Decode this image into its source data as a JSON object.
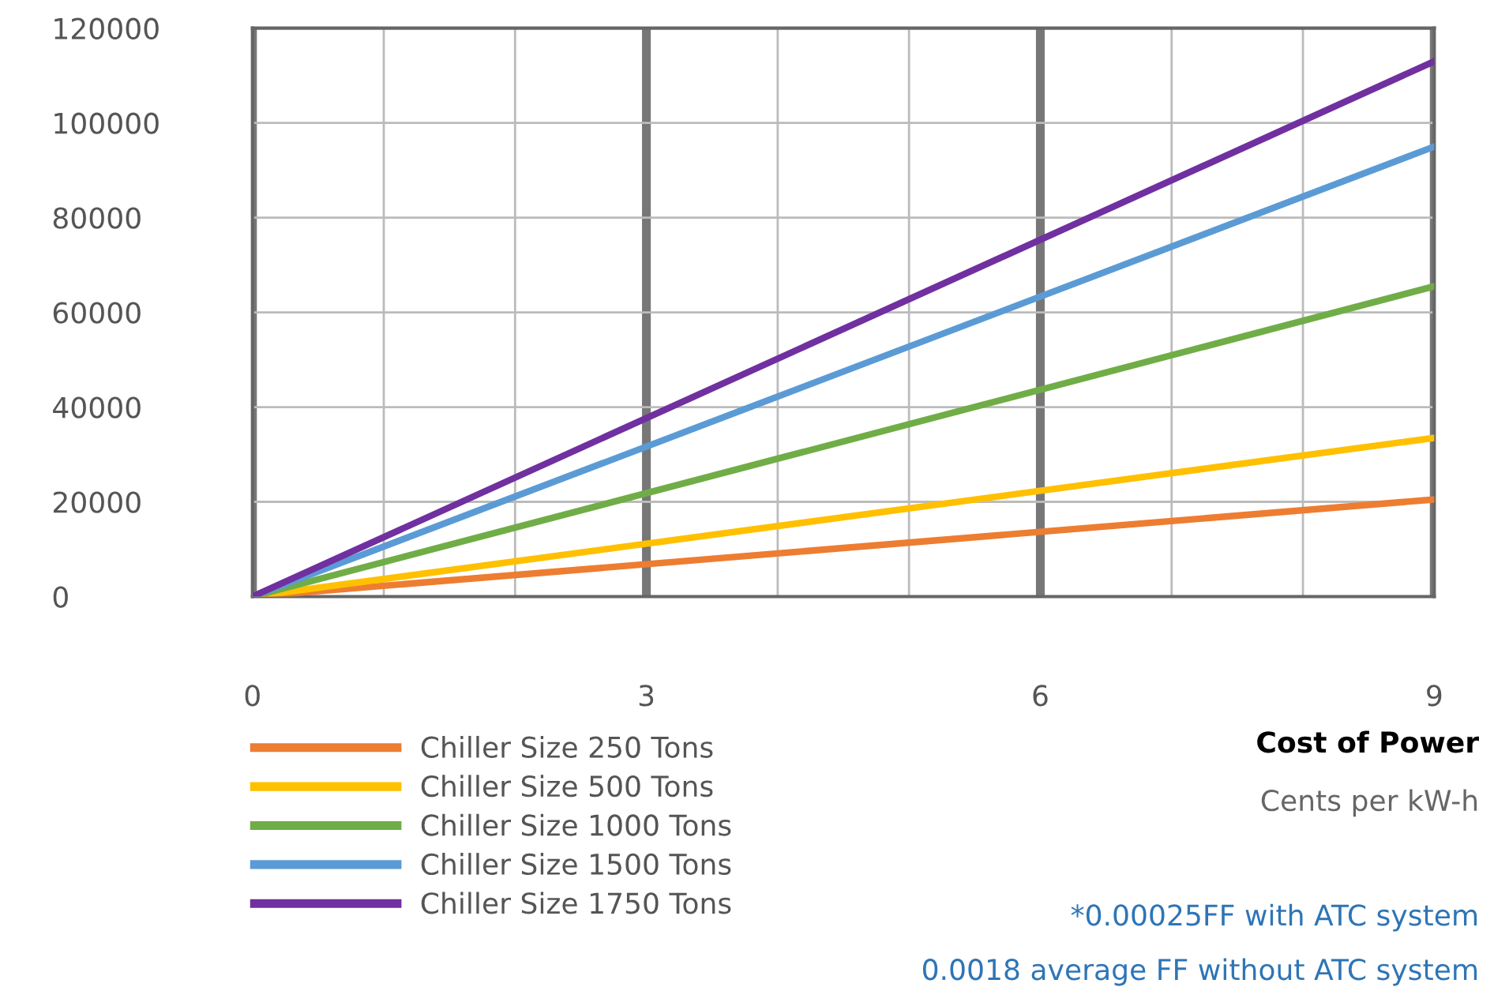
{
  "chart_data": {
    "type": "line",
    "xlabel": "Cost of Power",
    "x": [
      0,
      9
    ],
    "series": [
      {
        "name": "Chiller Size 250 Tons",
        "color": "#ed7d31",
        "values": [
          0,
          20500
        ]
      },
      {
        "name": "Chiller Size 500 Tons",
        "color": "#ffc000",
        "values": [
          0,
          33500
        ]
      },
      {
        "name": "Chiller Size 1000 Tons",
        "color": "#70ad47",
        "values": [
          0,
          65500
        ]
      },
      {
        "name": "Chiller Size 1500 Tons",
        "color": "#5b9bd5",
        "values": [
          0,
          95000
        ]
      },
      {
        "name": "Chiller Size 1750 Tons",
        "color": "#7030a0",
        "values": [
          0,
          113000
        ]
      }
    ],
    "xlim": [
      0,
      9
    ],
    "ylim": [
      0,
      120000
    ],
    "xticks": [
      0,
      {
        "value": 1,
        "label": null
      },
      {
        "value": 2,
        "label": null
      },
      3,
      {
        "value": 4,
        "label": null
      },
      {
        "value": 5,
        "label": null
      },
      6,
      {
        "value": 7,
        "label": null
      },
      {
        "value": 8,
        "label": null
      },
      9
    ],
    "yticks": [
      0,
      20000,
      40000,
      60000,
      80000,
      100000,
      120000
    ],
    "grid": true,
    "legend": "bottom left",
    "marker": "none",
    "line_style": "solid",
    "annotations": [
      "Cents per kW-h",
      "*0.00025FF with ATC system",
      "0.0018 average FF without ATC system"
    ]
  }
}
